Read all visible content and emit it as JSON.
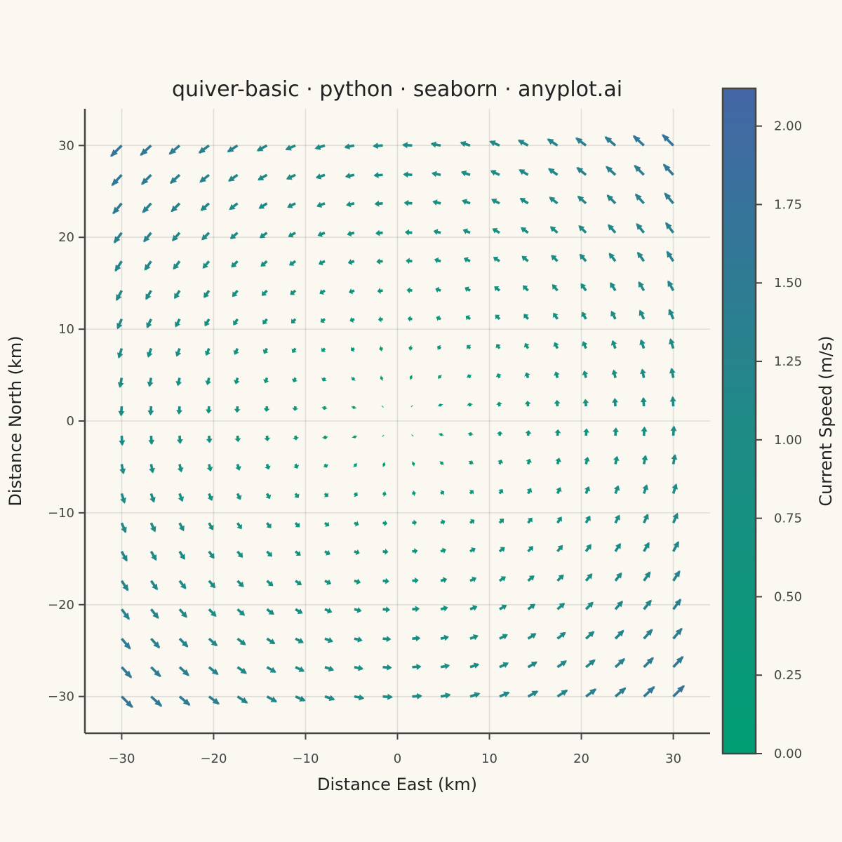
{
  "chart_data": {
    "type": "quiver",
    "title": "quiver-basic · python · seaborn · anyplot.ai",
    "xlabel": "Distance East (km)",
    "ylabel": "Distance North (km)",
    "xlim": [
      -34,
      34
    ],
    "ylim": [
      -34,
      34
    ],
    "x_ticks": [
      -30,
      -20,
      -10,
      0,
      10,
      20,
      30
    ],
    "y_ticks": [
      -30,
      -20,
      -10,
      0,
      10,
      20,
      30
    ],
    "x_tick_labels": [
      "−30",
      "−20",
      "−10",
      "0",
      "10",
      "20",
      "30"
    ],
    "y_tick_labels": [
      "−30",
      "−20",
      "−10",
      "0",
      "10",
      "20",
      "30"
    ],
    "grid": true,
    "field": {
      "description": "counter-clockwise vortex centred at origin",
      "x": [
        -30,
        -26.8,
        -23.7,
        -20.5,
        -17.4,
        -14.2,
        -11.1,
        -7.9,
        -4.7,
        -1.6,
        1.6,
        4.7,
        7.9,
        11.1,
        14.2,
        17.4,
        20.5,
        23.7,
        26.8,
        30
      ],
      "y": [
        -30,
        -26.8,
        -23.7,
        -20.5,
        -17.4,
        -14.2,
        -11.1,
        -7.9,
        -4.7,
        -1.6,
        1.6,
        4.7,
        7.9,
        11.1,
        14.2,
        17.4,
        20.5,
        23.7,
        26.8,
        30
      ],
      "u": "-y / 30 * (1 + 0.2 * (|x| / 30)^2)",
      "v": "x / 30 * (1 + 0.2 * (|y| / 30)^2)",
      "speed_unit": "m/s"
    },
    "colorbar": {
      "label": "Current Speed (m/s)",
      "range": [
        0,
        2.12
      ],
      "ticks": [
        0,
        0.25,
        0.5,
        0.75,
        1.0,
        1.25,
        1.5,
        1.75,
        2.0
      ],
      "tick_labels": [
        "0.00",
        "0.25",
        "0.50",
        "0.75",
        "1.00",
        "1.25",
        "1.50",
        "1.75",
        "2.00"
      ],
      "color_low": "#009E73",
      "color_high": "#4466A6"
    }
  }
}
